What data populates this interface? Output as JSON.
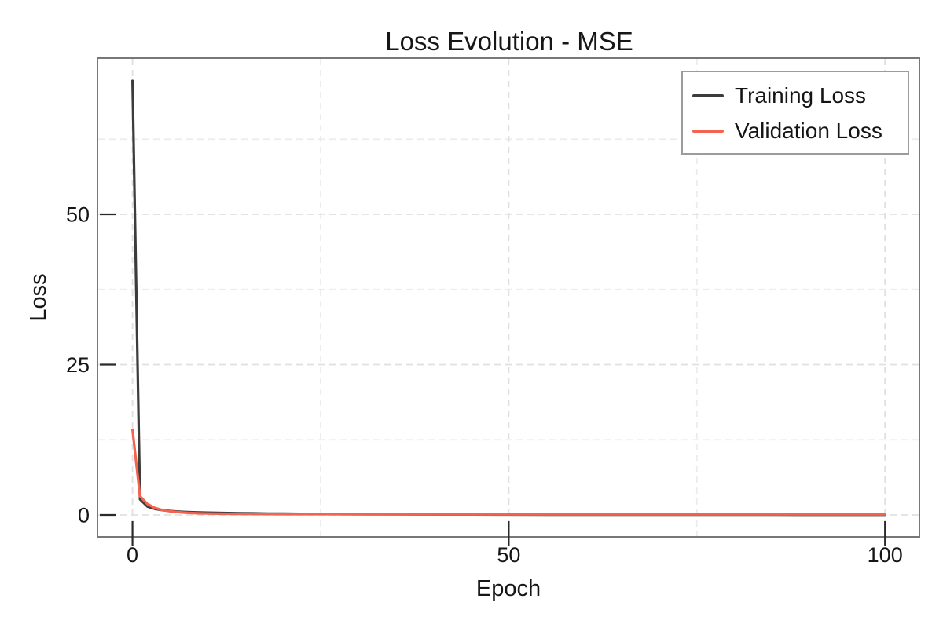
{
  "chart_data": {
    "type": "line",
    "title": "Loss Evolution - MSE",
    "xlabel": "Epoch",
    "ylabel": "Loss",
    "xlim": [
      -4.55,
      104.47
    ],
    "ylim": [
      -3.52,
      75.85
    ],
    "x_ticks": [
      0,
      50,
      100
    ],
    "x_tick_labels": [
      "0",
      "50",
      "100"
    ],
    "y_ticks": [
      0,
      25,
      50
    ],
    "y_tick_labels": [
      "0",
      "25",
      "50"
    ],
    "x_minor_gridlines": [
      25,
      75
    ],
    "y_minor_gridlines": [
      12.5,
      37.5,
      62.5
    ],
    "grid": true,
    "grid_style": "dashed",
    "legend_position": "top-right",
    "x": [
      0,
      1,
      2,
      3,
      4,
      5,
      6,
      7,
      8,
      9,
      10,
      12,
      14,
      16,
      18,
      20,
      25,
      30,
      35,
      40,
      45,
      50,
      55,
      60,
      65,
      70,
      75,
      80,
      85,
      90,
      95,
      100
    ],
    "series": [
      {
        "name": "Training Loss",
        "color": "#3c3c3c",
        "values": [
          72.2,
          2.6,
          1.4,
          1.0,
          0.8,
          0.66,
          0.57,
          0.5,
          0.45,
          0.41,
          0.38,
          0.33,
          0.29,
          0.26,
          0.23,
          0.21,
          0.16,
          0.13,
          0.11,
          0.09,
          0.08,
          0.07,
          0.06,
          0.06,
          0.05,
          0.05,
          0.04,
          0.04,
          0.04,
          0.03,
          0.03,
          0.03
        ]
      },
      {
        "name": "Validation Loss",
        "color": "#f4634e",
        "values": [
          14.2,
          3.1,
          1.8,
          1.15,
          0.82,
          0.61,
          0.47,
          0.38,
          0.32,
          0.27,
          0.24,
          0.2,
          0.18,
          0.16,
          0.15,
          0.14,
          0.13,
          0.12,
          0.11,
          0.11,
          0.1,
          0.1,
          0.1,
          0.1,
          0.09,
          0.09,
          0.09,
          0.09,
          0.09,
          0.09,
          0.09,
          0.09
        ]
      }
    ]
  },
  "colors": {
    "background": "#ffffff",
    "panel_border": "#787878",
    "legend_border": "#9c9c9c",
    "grid_major": "#e0e0e0",
    "grid_minor": "#ececec",
    "tick": "#2a2a2a",
    "text": "#161616"
  }
}
